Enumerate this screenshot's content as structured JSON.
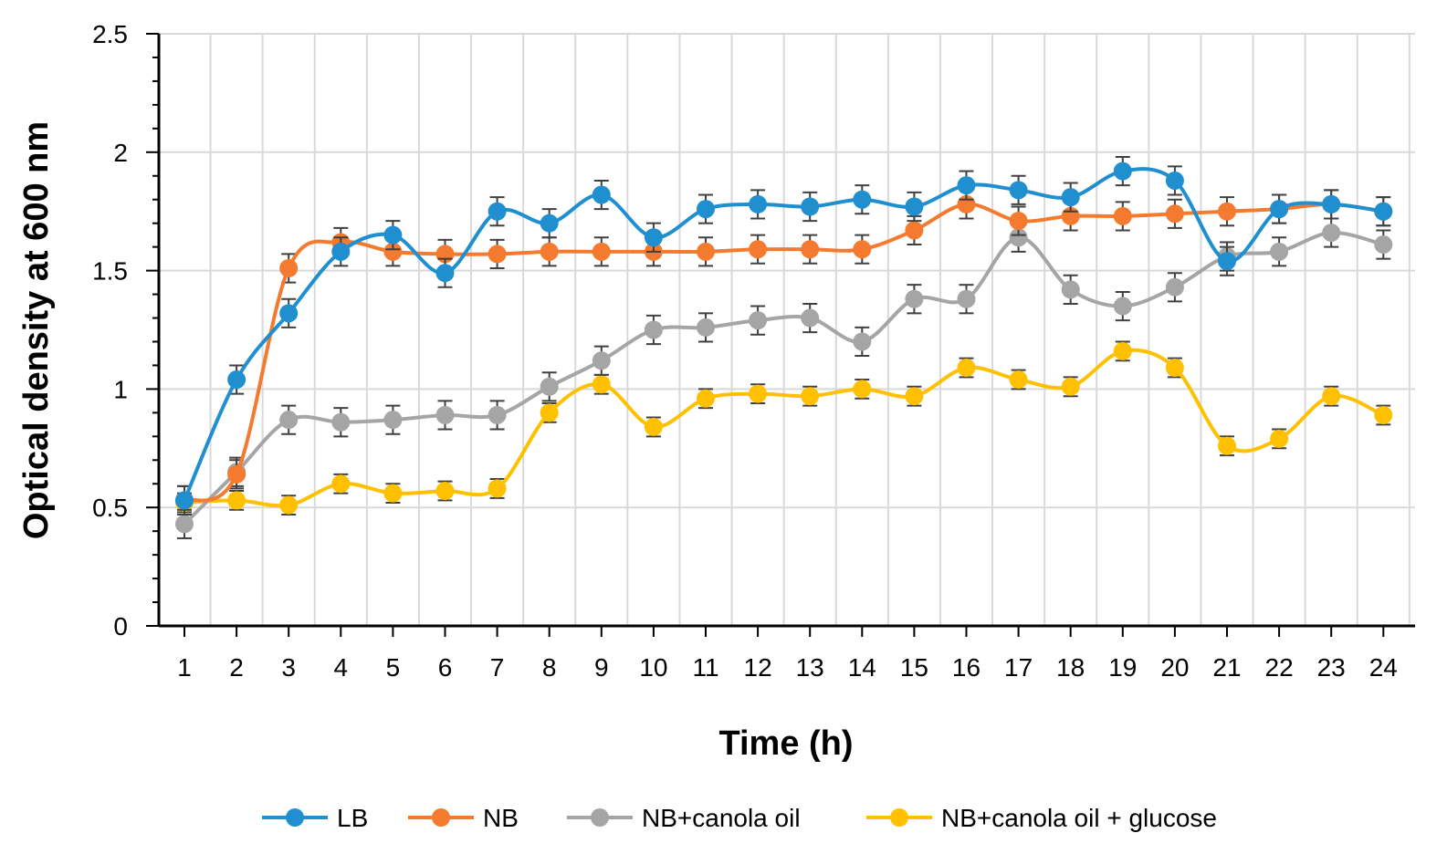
{
  "chart_data": {
    "type": "line",
    "title": "",
    "xlabel": "Time (h)",
    "ylabel": "Optical density at 600 nm",
    "x": [
      1,
      2,
      3,
      4,
      5,
      6,
      7,
      8,
      9,
      10,
      11,
      12,
      13,
      14,
      15,
      16,
      17,
      18,
      19,
      20,
      21,
      22,
      23,
      24
    ],
    "ylim": [
      0,
      2.5
    ],
    "yticks": [
      0,
      0.5,
      1,
      1.5,
      2,
      2.5
    ],
    "ytick_labels": [
      "0",
      "0.5",
      "1",
      "1.5",
      "2",
      "2.5"
    ],
    "grid": true,
    "legend_position": "bottom",
    "series": [
      {
        "name": "LB",
        "color": "#1f8fd0",
        "values": [
          0.53,
          1.04,
          1.32,
          1.58,
          1.65,
          1.49,
          1.75,
          1.7,
          1.82,
          1.64,
          1.76,
          1.78,
          1.77,
          1.8,
          1.77,
          1.86,
          1.84,
          1.81,
          1.92,
          1.88,
          1.54,
          1.76,
          1.78,
          1.75
        ],
        "errors": [
          0.06,
          0.06,
          0.06,
          0.06,
          0.06,
          0.06,
          0.06,
          0.06,
          0.06,
          0.06,
          0.06,
          0.06,
          0.06,
          0.06,
          0.06,
          0.06,
          0.06,
          0.06,
          0.06,
          0.06,
          0.06,
          0.06,
          0.06,
          0.06
        ]
      },
      {
        "name": "NB",
        "color": "#f47a30",
        "values": [
          0.53,
          0.64,
          1.51,
          1.62,
          1.58,
          1.57,
          1.57,
          1.58,
          1.58,
          1.58,
          1.58,
          1.59,
          1.59,
          1.59,
          1.67,
          1.78,
          1.71,
          1.73,
          1.73,
          1.74,
          1.75,
          1.76,
          1.78,
          1.75
        ],
        "errors": [
          0.06,
          0.06,
          0.06,
          0.06,
          0.06,
          0.06,
          0.06,
          0.06,
          0.06,
          0.06,
          0.06,
          0.06,
          0.06,
          0.06,
          0.06,
          0.06,
          0.06,
          0.06,
          0.06,
          0.06,
          0.06,
          0.06,
          0.06,
          0.06
        ]
      },
      {
        "name": "NB+canola oil",
        "color": "#a5a5a5",
        "values": [
          0.43,
          0.65,
          0.87,
          0.86,
          0.87,
          0.89,
          0.89,
          1.01,
          1.12,
          1.25,
          1.26,
          1.29,
          1.3,
          1.2,
          1.38,
          1.38,
          1.64,
          1.42,
          1.35,
          1.43,
          1.56,
          1.58,
          1.66,
          1.61
        ],
        "errors": [
          0.06,
          0.06,
          0.06,
          0.06,
          0.06,
          0.06,
          0.06,
          0.06,
          0.06,
          0.06,
          0.06,
          0.06,
          0.06,
          0.06,
          0.06,
          0.06,
          0.06,
          0.06,
          0.06,
          0.06,
          0.06,
          0.06,
          0.06,
          0.06
        ]
      },
      {
        "name": "NB+canola oil + glucose",
        "color": "#ffc000",
        "values": [
          0.52,
          0.53,
          0.51,
          0.6,
          0.56,
          0.57,
          0.58,
          0.9,
          1.02,
          0.84,
          0.96,
          0.98,
          0.97,
          1.0,
          0.97,
          1.09,
          1.04,
          1.01,
          1.16,
          1.09,
          0.76,
          0.79,
          0.97,
          0.89
        ],
        "errors": [
          0.04,
          0.04,
          0.04,
          0.04,
          0.04,
          0.04,
          0.04,
          0.04,
          0.04,
          0.04,
          0.04,
          0.04,
          0.04,
          0.04,
          0.04,
          0.04,
          0.04,
          0.04,
          0.04,
          0.04,
          0.04,
          0.04,
          0.04,
          0.04
        ]
      }
    ]
  }
}
